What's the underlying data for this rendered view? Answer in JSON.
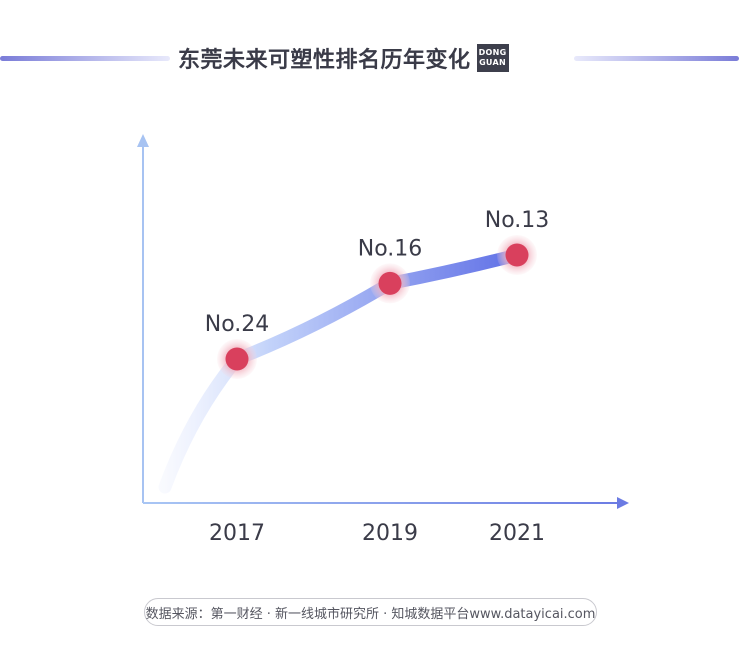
{
  "header": {
    "title": "东莞未来可塑性排名历年变化",
    "logo_line1": "DONG",
    "logo_line2": "GUAN"
  },
  "chart_data": {
    "type": "line",
    "title": "东莞未来可塑性排名历年变化",
    "categories": [
      "2017",
      "2019",
      "2021"
    ],
    "series": [
      {
        "values": [
          24,
          16,
          13
        ],
        "labels": [
          "No.24",
          "No.16",
          "No.13"
        ]
      }
    ],
    "xlabel": "",
    "ylabel": "",
    "y_axis": "rank, inverted (lower rank shown higher)",
    "grid": false,
    "colors": {
      "axis": "#a7c3f2",
      "line_start": "#c9d6fb",
      "line_end": "#5f6fe6",
      "marker": "#d9405d",
      "marker_halo": "#f3c2cc",
      "label": "#3a3b48"
    }
  },
  "footer": {
    "source": "数据来源：第一财经 · 新一线城市研究所 · 知城数据平台www.datayicai.com"
  }
}
